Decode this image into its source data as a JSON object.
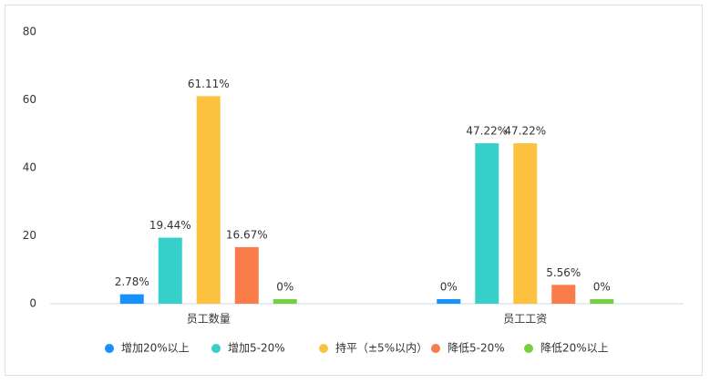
{
  "chart_data": {
    "type": "bar",
    "categories": [
      "员工数量",
      "员工工资"
    ],
    "series": [
      {
        "name": "增加20%以上",
        "color": "#1890ff",
        "values": [
          2.78,
          0
        ],
        "value_labels": [
          "2.78%",
          "0%"
        ]
      },
      {
        "name": "增加5-20%",
        "color": "#36cfc9",
        "values": [
          19.44,
          47.22
        ],
        "value_labels": [
          "19.44%",
          "47.22%"
        ]
      },
      {
        "name": "持平（±5%以内）",
        "color": "#fcc23f",
        "values": [
          61.11,
          47.22
        ],
        "value_labels": [
          "61.11%",
          "47.22%"
        ]
      },
      {
        "name": "降低5-20%",
        "color": "#fa7c4a",
        "values": [
          16.67,
          5.56
        ],
        "value_labels": [
          "16.67%",
          "5.56%"
        ]
      },
      {
        "name": "降低20%以上",
        "color": "#73d13d",
        "values": [
          0,
          0
        ],
        "value_labels": [
          "0%",
          "0%"
        ]
      }
    ],
    "ylim": [
      0,
      80
    ],
    "yticks": [
      0,
      20,
      40,
      60,
      80
    ],
    "grid": false,
    "legend": "bottom"
  }
}
